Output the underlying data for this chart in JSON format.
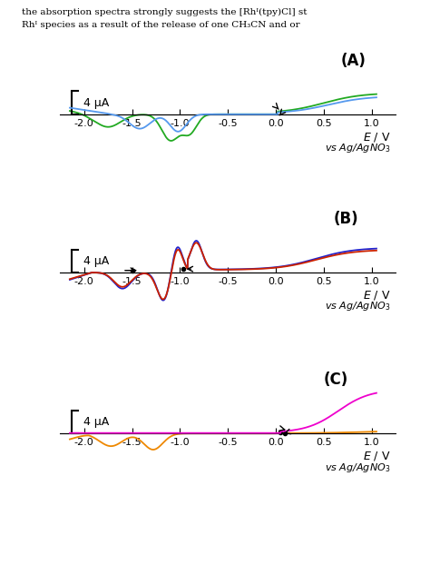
{
  "header_line1": "the absorption spectra strongly suggests the [Rhᴵ(tpy)Cl] st",
  "header_line2": "Rhᴵ species as a result of the release of one CH₃CN and or",
  "scale_label": "4 μA",
  "xlim": [
    -2.25,
    1.25
  ],
  "xticks": [
    -2.0,
    -1.5,
    -1.0,
    -0.5,
    0.0,
    0.5,
    1.0
  ],
  "xtick_labels": [
    "-2.0",
    "-1.5",
    "-1.0",
    "-0.5",
    "0.0",
    "0.5",
    "1.0"
  ],
  "panel_labels": [
    "(A)",
    "(B)",
    "(C)"
  ],
  "color_green": "#22aa22",
  "color_blue_light": "#5599ee",
  "color_blue": "#2222cc",
  "color_red": "#cc2200",
  "color_orange": "#ee8800",
  "color_magenta": "#ee00cc",
  "bg": "#ffffff",
  "scale_uA": 4.0,
  "ylim": [
    -14,
    11
  ]
}
